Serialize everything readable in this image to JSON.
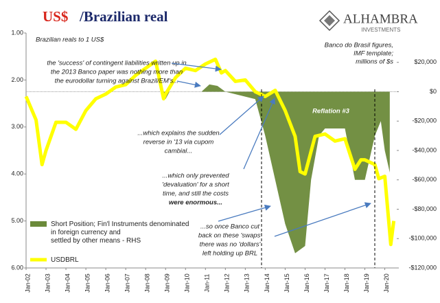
{
  "chart_data": {
    "type": "line-area",
    "title_prefix": "US$",
    "title": "/Brazilian real",
    "subtitle": "Brazilian reals to 1 US$",
    "right_axis_label": [
      "Banco do Brasil figures,",
      "IMF template;",
      "millions of $s"
    ],
    "logo": [
      "ALHAMBRA",
      "INVESTMENTS"
    ],
    "annotations": [
      [
        "the 'success' of contingent liabilities written up in",
        "the 2013 Banco paper was nothing more than",
        "the eurodollar turning against Brazil/EM's..."
      ],
      [
        "...which explains the sudden",
        "reverse in '13 via cupom",
        "cambial..."
      ],
      [
        "...which only prevented",
        "'devaluation' for a short",
        "time, and still the costs",
        "were enormous..."
      ],
      [
        "...so once Banco cut",
        "back on these 'swaps'",
        "there was no 'dollars'",
        "left holding up BRL"
      ],
      [
        "Reflation #3"
      ]
    ],
    "xlim": [
      2002,
      2020.6
    ],
    "xticks": [
      {
        "value": 2002,
        "label": "Jan-02"
      },
      {
        "value": 2003,
        "label": "Jan-03"
      },
      {
        "value": 2004,
        "label": "Jan-04"
      },
      {
        "value": 2005,
        "label": "Jan-05"
      },
      {
        "value": 2006,
        "label": "Jan-06"
      },
      {
        "value": 2007,
        "label": "Jan-07"
      },
      {
        "value": 2008,
        "label": "Jan-08"
      },
      {
        "value": 2009,
        "label": "Jan-09"
      },
      {
        "value": 2010,
        "label": "Jan-10"
      },
      {
        "value": 2011,
        "label": "Jan-11"
      },
      {
        "value": 2012,
        "label": "Jan-12"
      },
      {
        "value": 2013,
        "label": "Jan-13"
      },
      {
        "value": 2014,
        "label": "Jan-14"
      },
      {
        "value": 2015,
        "label": "Jan-15"
      },
      {
        "value": 2016,
        "label": "Jan-16"
      },
      {
        "value": 2017,
        "label": "Jan-17"
      },
      {
        "value": 2018,
        "label": "Jan-18"
      },
      {
        "value": 2019,
        "label": "Jan-19"
      },
      {
        "value": 2020,
        "label": "Jan-20"
      }
    ],
    "ylim": [
      1,
      6
    ],
    "y_inverted": true,
    "yticks": [
      {
        "value": 1,
        "label": "1.00"
      },
      {
        "value": 2,
        "label": "2.00"
      },
      {
        "value": 3,
        "label": "3.00"
      },
      {
        "value": 4,
        "label": "4.00"
      },
      {
        "value": 5,
        "label": "5.00"
      },
      {
        "value": 6,
        "label": "6.00"
      }
    ],
    "y2lim": [
      -120000,
      40000
    ],
    "y2ticks": [
      {
        "value": 20000,
        "label": "$20,000"
      },
      {
        "value": 0,
        "label": "$0"
      },
      {
        "value": -20000,
        "label": "-$20,000"
      },
      {
        "value": -40000,
        "label": "-$40,000"
      },
      {
        "value": -60000,
        "label": "-$60,000"
      },
      {
        "value": -80000,
        "label": "-$80,000"
      },
      {
        "value": -100000,
        "label": "-$100,000"
      },
      {
        "value": -120000,
        "label": "-$120,000"
      }
    ],
    "series": [
      {
        "name": "Short Position; Fin'l Instruments denominated in foreign currency and settled by other means - RHS",
        "kind": "area",
        "axis": "y2",
        "color": "#6b8a3a",
        "x": [
          2002,
          2008.8,
          2009.0,
          2009.2,
          2010.8,
          2011.2,
          2011.6,
          2012.0,
          2013.5,
          2014.0,
          2014.5,
          2015.0,
          2015.5,
          2016.0,
          2016.3,
          2016.7,
          2017.0,
          2017.5,
          2018.0,
          2018.5,
          2019.0,
          2019.5,
          2019.8,
          2020.0,
          2020.25
        ],
        "values": [
          0,
          0,
          -5000,
          0,
          0,
          5000,
          4000,
          0,
          -5000,
          -30000,
          -60000,
          -90000,
          -110000,
          -105000,
          -60000,
          -30000,
          -25000,
          -25000,
          -25000,
          -60000,
          -60000,
          -30000,
          -20000,
          -40000,
          -55000
        ]
      },
      {
        "name": "USDBRL",
        "kind": "line",
        "axis": "y",
        "color": "#ffff00",
        "x": [
          2002.0,
          2002.5,
          2002.8,
          2003.0,
          2003.5,
          2004.0,
          2004.5,
          2005.0,
          2005.5,
          2006.0,
          2006.5,
          2007.0,
          2007.5,
          2008.0,
          2008.5,
          2008.9,
          2009.0,
          2009.5,
          2010.0,
          2010.5,
          2011.0,
          2011.5,
          2011.8,
          2012.0,
          2012.5,
          2013.0,
          2013.5,
          2014.0,
          2014.5,
          2015.0,
          2015.5,
          2015.75,
          2016.0,
          2016.5,
          2017.0,
          2017.5,
          2018.0,
          2018.5,
          2018.8,
          2019.0,
          2019.5,
          2019.7,
          2020.0,
          2020.3,
          2020.45
        ],
        "values": [
          2.35,
          2.85,
          3.8,
          3.5,
          2.9,
          2.9,
          3.05,
          2.65,
          2.4,
          2.3,
          2.15,
          2.1,
          1.9,
          1.75,
          1.6,
          2.4,
          2.3,
          1.95,
          1.75,
          1.8,
          1.66,
          1.56,
          1.85,
          1.8,
          2.03,
          2.0,
          2.25,
          2.35,
          2.22,
          2.65,
          3.2,
          3.95,
          4.0,
          3.2,
          3.15,
          3.3,
          3.25,
          3.9,
          3.7,
          3.7,
          3.8,
          4.1,
          4.05,
          5.5,
          5.0
        ]
      }
    ]
  }
}
